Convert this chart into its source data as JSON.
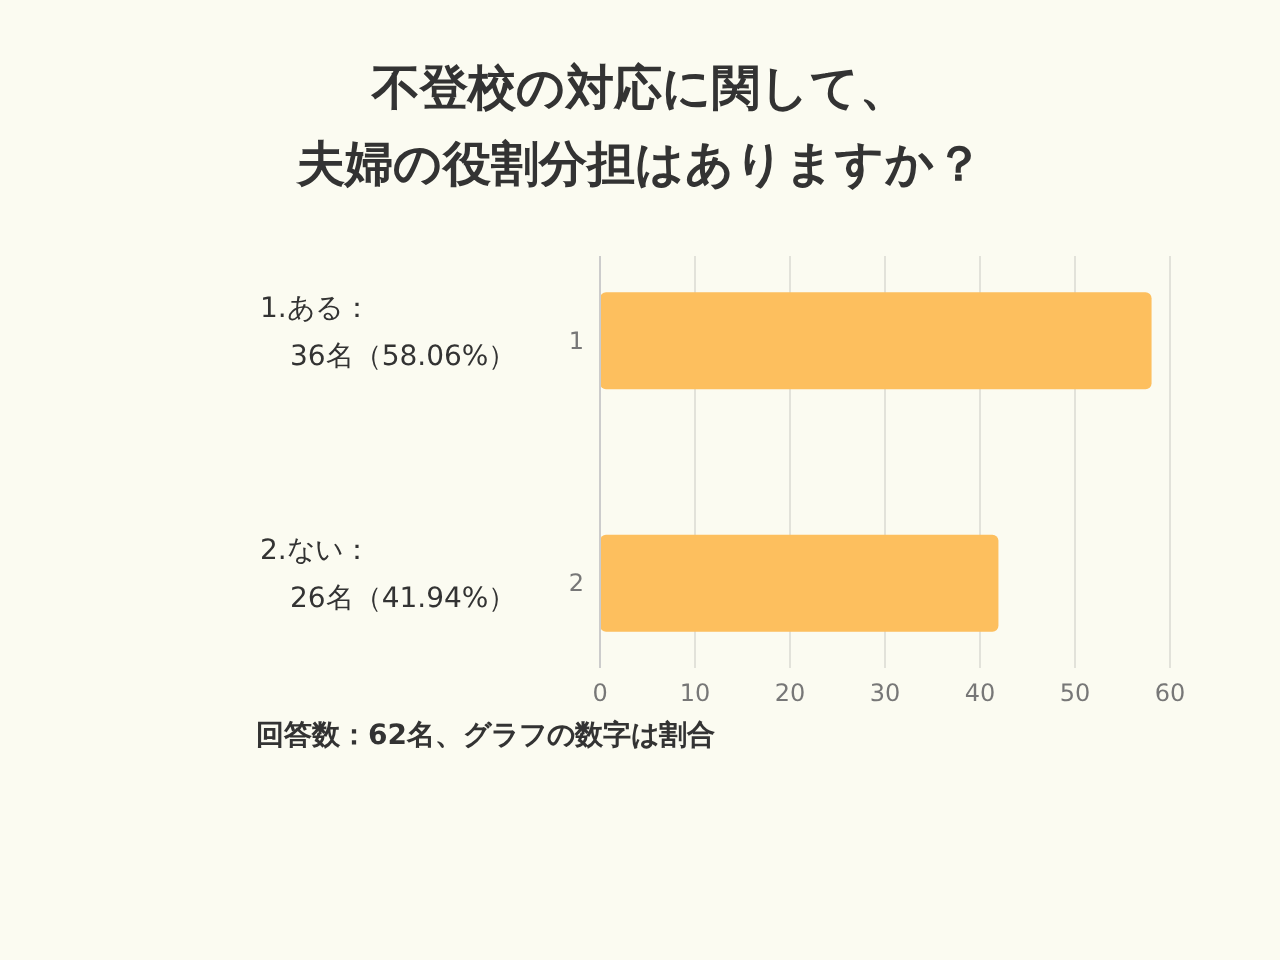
{
  "chart_data": {
    "type": "bar",
    "orientation": "horizontal",
    "title": "不登校の対応に関して、夫婦の役割分担はありますか？",
    "categories": [
      "1",
      "2"
    ],
    "values": [
      58.06,
      41.94
    ],
    "color": "#fdbf5e",
    "xlim": [
      0,
      60
    ],
    "xticks": [
      0,
      10,
      20,
      30,
      40,
      50,
      60
    ],
    "grid": "x",
    "annotations": [
      "1.ある：36名（58.06%）",
      "2.ない：26名（41.94%）",
      "回答数：62名、グラフの数字は割合"
    ]
  }
}
